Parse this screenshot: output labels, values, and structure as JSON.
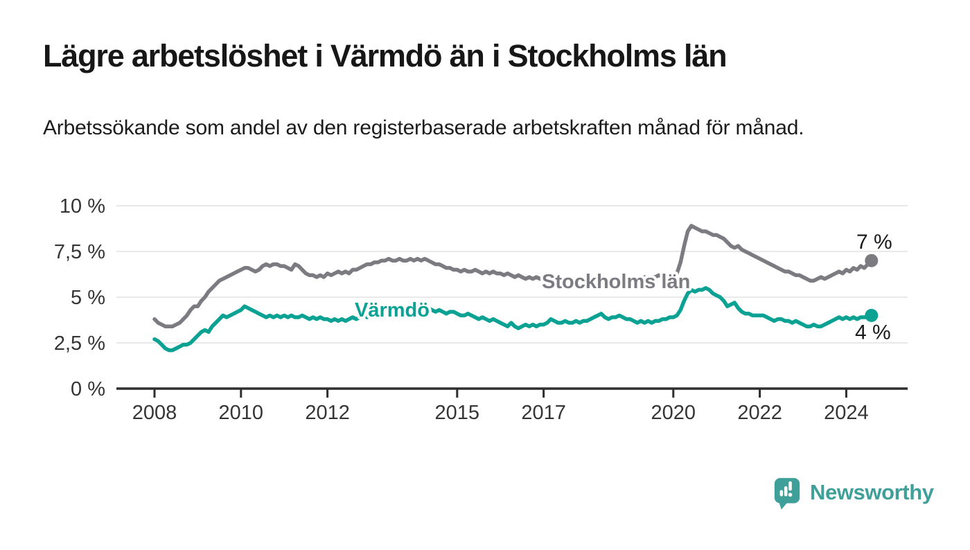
{
  "header": {
    "title": "Lägre arbetslöshet i Värmdö än i Stockholms län",
    "subtitle": "Arbetssökande som andel av den registerbaserade arbetskraften månad för månad."
  },
  "chart_data": {
    "type": "line",
    "title": "Lägre arbetslöshet i Värmdö än i Stockholms län",
    "subtitle": "Arbetssökande som andel av den registerbaserade arbetskraften månad för månad.",
    "unit": "%",
    "grid": true,
    "ylim": [
      0,
      10
    ],
    "x_start": 2008.0,
    "x_step_months": 1,
    "x_ticks": [
      {
        "year": 2008,
        "label": "2008"
      },
      {
        "year": 2010,
        "label": "2010"
      },
      {
        "year": 2012,
        "label": "2012"
      },
      {
        "year": 2015,
        "label": "2015"
      },
      {
        "year": 2017,
        "label": "2017"
      },
      {
        "year": 2020,
        "label": "2020"
      },
      {
        "year": 2022,
        "label": "2022"
      },
      {
        "year": 2024,
        "label": "2024"
      }
    ],
    "y_ticks": [
      {
        "value": 0,
        "label": "0 %"
      },
      {
        "value": 2.5,
        "label": "2,5 %"
      },
      {
        "value": 5,
        "label": "5 %"
      },
      {
        "value": 7.5,
        "label": "7,5 %"
      },
      {
        "value": 10,
        "label": "10 %"
      }
    ],
    "series": [
      {
        "name": "Stockholms län",
        "color": "#7b7b81",
        "end_label": "7 %",
        "values": [
          3.8,
          3.6,
          3.5,
          3.4,
          3.4,
          3.4,
          3.5,
          3.6,
          3.8,
          4.0,
          4.3,
          4.5,
          4.5,
          4.8,
          5.0,
          5.3,
          5.5,
          5.7,
          5.9,
          6.0,
          6.1,
          6.2,
          6.3,
          6.4,
          6.5,
          6.6,
          6.6,
          6.5,
          6.4,
          6.5,
          6.7,
          6.8,
          6.7,
          6.8,
          6.8,
          6.7,
          6.7,
          6.6,
          6.5,
          6.8,
          6.7,
          6.5,
          6.3,
          6.2,
          6.2,
          6.1,
          6.2,
          6.1,
          6.3,
          6.2,
          6.3,
          6.4,
          6.3,
          6.4,
          6.3,
          6.5,
          6.5,
          6.6,
          6.7,
          6.8,
          6.8,
          6.9,
          6.9,
          7.0,
          7.0,
          7.1,
          7.0,
          7.0,
          7.1,
          7.0,
          7.0,
          7.1,
          7.0,
          7.1,
          7.0,
          7.1,
          7.0,
          6.9,
          6.8,
          6.8,
          6.7,
          6.6,
          6.6,
          6.5,
          6.5,
          6.4,
          6.5,
          6.4,
          6.4,
          6.5,
          6.4,
          6.3,
          6.4,
          6.3,
          6.4,
          6.3,
          6.3,
          6.2,
          6.3,
          6.2,
          6.1,
          6.2,
          6.1,
          6.0,
          6.1,
          6.0,
          6.1,
          6.0,
          6.1,
          6.0,
          6.0,
          6.1,
          6.0,
          5.9,
          6.0,
          6.0,
          5.9,
          6.0,
          5.9,
          6.0,
          5.9,
          5.9,
          6.0,
          5.9,
          5.8,
          5.9,
          5.9,
          5.8,
          5.9,
          5.9,
          6.0,
          5.9,
          6.0,
          5.9,
          6.0,
          6.0,
          6.1,
          6.0,
          6.1,
          6.1,
          6.2,
          6.1,
          6.2,
          6.2,
          6.2,
          6.3,
          6.9,
          7.8,
          8.6,
          8.9,
          8.8,
          8.7,
          8.6,
          8.6,
          8.5,
          8.4,
          8.4,
          8.3,
          8.2,
          8.0,
          7.8,
          7.7,
          7.8,
          7.6,
          7.5,
          7.4,
          7.3,
          7.2,
          7.1,
          7.0,
          6.9,
          6.8,
          6.7,
          6.6,
          6.5,
          6.4,
          6.4,
          6.3,
          6.2,
          6.2,
          6.1,
          6.0,
          5.9,
          5.9,
          6.0,
          6.1,
          6.0,
          6.1,
          6.2,
          6.3,
          6.4,
          6.3,
          6.5,
          6.4,
          6.6,
          6.5,
          6.7,
          6.6,
          6.8,
          7.0
        ]
      },
      {
        "name": "Värmdö",
        "color": "#0ba294",
        "end_label": "4 %",
        "values": [
          2.7,
          2.6,
          2.4,
          2.2,
          2.1,
          2.1,
          2.2,
          2.3,
          2.4,
          2.4,
          2.5,
          2.7,
          2.9,
          3.1,
          3.2,
          3.1,
          3.4,
          3.6,
          3.8,
          4.0,
          3.9,
          4.0,
          4.1,
          4.2,
          4.3,
          4.5,
          4.4,
          4.3,
          4.2,
          4.1,
          4.0,
          3.9,
          4.0,
          3.9,
          4.0,
          3.9,
          4.0,
          3.9,
          4.0,
          3.9,
          3.9,
          4.0,
          3.9,
          3.8,
          3.9,
          3.8,
          3.9,
          3.8,
          3.8,
          3.7,
          3.8,
          3.7,
          3.8,
          3.7,
          3.8,
          3.9,
          3.8,
          3.9,
          4.0,
          3.9,
          4.0,
          4.1,
          4.0,
          4.1,
          4.2,
          4.1,
          4.2,
          4.1,
          4.2,
          4.3,
          4.2,
          4.3,
          4.2,
          4.3,
          4.4,
          4.3,
          4.4,
          4.3,
          4.2,
          4.3,
          4.2,
          4.1,
          4.2,
          4.2,
          4.1,
          4.0,
          4.0,
          4.1,
          4.0,
          3.9,
          3.8,
          3.9,
          3.8,
          3.7,
          3.8,
          3.7,
          3.6,
          3.5,
          3.4,
          3.6,
          3.4,
          3.3,
          3.4,
          3.5,
          3.4,
          3.5,
          3.4,
          3.5,
          3.5,
          3.6,
          3.8,
          3.7,
          3.6,
          3.6,
          3.7,
          3.6,
          3.6,
          3.7,
          3.6,
          3.7,
          3.7,
          3.8,
          3.9,
          4.0,
          4.1,
          3.9,
          3.8,
          3.9,
          3.9,
          4.0,
          3.9,
          3.8,
          3.8,
          3.7,
          3.6,
          3.7,
          3.6,
          3.7,
          3.6,
          3.7,
          3.7,
          3.8,
          3.8,
          3.9,
          3.9,
          4.0,
          4.3,
          4.8,
          5.2,
          5.4,
          5.3,
          5.4,
          5.4,
          5.5,
          5.4,
          5.2,
          5.1,
          5.0,
          4.8,
          4.5,
          4.6,
          4.7,
          4.4,
          4.2,
          4.1,
          4.1,
          4.0,
          4.0,
          4.0,
          4.0,
          3.9,
          3.8,
          3.7,
          3.8,
          3.8,
          3.7,
          3.7,
          3.6,
          3.7,
          3.6,
          3.5,
          3.4,
          3.4,
          3.5,
          3.4,
          3.4,
          3.5,
          3.6,
          3.7,
          3.8,
          3.9,
          3.8,
          3.9,
          3.8,
          3.9,
          3.8,
          3.9,
          3.9,
          3.9,
          4.0
        ]
      }
    ]
  },
  "branding": {
    "name": "Newsworthy",
    "color": "#3f9f99",
    "logo_icon": "speech-bubble-bar-chart"
  }
}
